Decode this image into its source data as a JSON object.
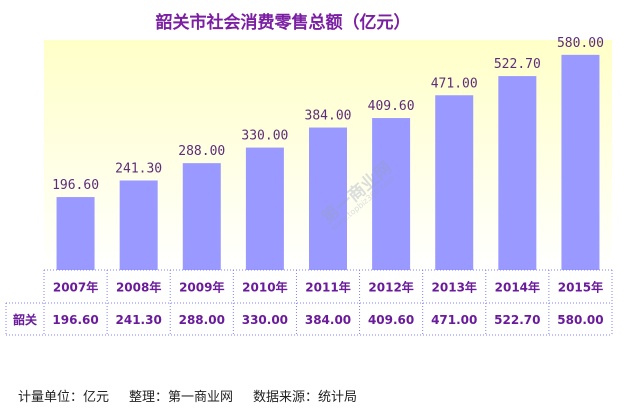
{
  "chart_data": {
    "type": "bar",
    "title": "韶关市社会消费零售总额（亿元）",
    "categories": [
      "2007年",
      "2008年",
      "2009年",
      "2010年",
      "2011年",
      "2012年",
      "2013年",
      "2014年",
      "2015年"
    ],
    "series": [
      {
        "name": "韶关",
        "values": [
          196.6,
          241.3,
          288.0,
          330.0,
          384.0,
          409.6,
          471.0,
          522.7,
          580.0
        ],
        "labels": [
          "196.60",
          "241.30",
          "288.00",
          "330.00",
          "384.00",
          "409.60",
          "471.00",
          "522.70",
          "580.00"
        ]
      }
    ],
    "ylim": [
      0,
      620
    ],
    "grid": false,
    "legend": "none",
    "data_table": true,
    "bar_color": "#9999ff",
    "plot_bg_top": "#ffffc8",
    "plot_bg_bottom": "#ffffff",
    "table_border_color": "#8080ff"
  },
  "footer": {
    "unit": "计量单位：亿元",
    "compiler": "整理：第一商业网",
    "source": "数据来源：统计局"
  },
  "watermark": {
    "text": "第一商业网",
    "subtext": "www.topbiz360.com"
  }
}
